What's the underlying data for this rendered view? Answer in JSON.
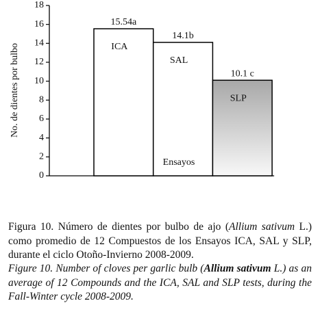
{
  "chart_data": {
    "type": "bar",
    "ylabel": "No. de dientes por bulbo",
    "xlabel": "Ensayos",
    "categories": [
      "ICA",
      "SAL",
      "SLP"
    ],
    "values": [
      15.54,
      14.1,
      10.1
    ],
    "value_labels": [
      "15.54a",
      "14.1b",
      "10.1 c"
    ],
    "colors": [
      "#ffffff",
      "#ffffff",
      "#a8a8a8"
    ],
    "ylim": [
      0,
      18
    ],
    "yticks": [
      0,
      2,
      4,
      6,
      8,
      10,
      12,
      14,
      16,
      18
    ],
    "grid": false
  },
  "caption_es": [
    {
      "text": "Figura 10. Número de dientes por bulbo de ajo (",
      "italic": false,
      "bold": false
    },
    {
      "text": "Allium sativum",
      "italic": true,
      "bold": false
    },
    {
      "text": " L.) como promedio de 12 Compuestos de los Ensayos ICA, SAL y SLP, durante el ciclo Otoño-Invierno 2008-2009.",
      "italic": false,
      "bold": false
    }
  ],
  "caption_en": [
    {
      "text": "Figure 10. Number of cloves per garlic bulb (",
      "italic": true,
      "bold": false
    },
    {
      "text": "Allium sativum",
      "italic": true,
      "bold": true
    },
    {
      "text": " L.) as an average of 12 Compounds and the ICA, SAL and SLP tests, during the Fall-Winter cycle 2008-2009.",
      "italic": true,
      "bold": false
    }
  ]
}
